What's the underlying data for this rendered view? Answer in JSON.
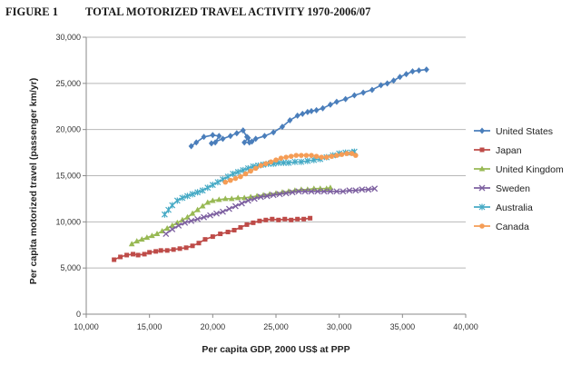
{
  "header": {
    "figure_label": "FIGURE 1",
    "title": "TOTAL MOTORIZED TRAVEL ACTIVITY 1970-2006/07"
  },
  "chart_data": {
    "type": "line",
    "title": "TOTAL MOTORIZED TRAVEL ACTIVITY 1970-2006/07",
    "xlabel": "Per capita GDP, 2000 US$ at PPP",
    "ylabel": "Per capita motorized travel (passenger km/yr)",
    "xlim": [
      10000,
      40000
    ],
    "ylim": [
      0,
      30000
    ],
    "xticks": [
      10000,
      15000,
      20000,
      25000,
      30000,
      35000,
      40000
    ],
    "yticks": [
      0,
      5000,
      10000,
      15000,
      20000,
      25000,
      30000
    ],
    "xtick_labels": [
      "10,000",
      "15,000",
      "20,000",
      "25,000",
      "30,000",
      "35,000",
      "40,000"
    ],
    "ytick_labels": [
      "0",
      "5,000",
      "10,000",
      "15,000",
      "20,000",
      "25,000",
      "30,000"
    ],
    "grid": "horizontal",
    "legend": "right",
    "series": [
      {
        "name": "United States",
        "color": "#4a7ebb",
        "marker": "diamond",
        "points": [
          [
            18300,
            18200
          ],
          [
            18700,
            18600
          ],
          [
            19300,
            19200
          ],
          [
            20000,
            19400
          ],
          [
            20500,
            19300
          ],
          [
            20200,
            18600
          ],
          [
            19900,
            18500
          ],
          [
            20800,
            19000
          ],
          [
            21400,
            19300
          ],
          [
            21900,
            19600
          ],
          [
            22400,
            19900
          ],
          [
            22700,
            19200
          ],
          [
            22900,
            18600
          ],
          [
            22800,
            19100
          ],
          [
            22500,
            18600
          ],
          [
            23100,
            18700
          ],
          [
            23400,
            19000
          ],
          [
            24100,
            19300
          ],
          [
            24800,
            19700
          ],
          [
            25500,
            20300
          ],
          [
            26100,
            21000
          ],
          [
            26700,
            21500
          ],
          [
            27100,
            21700
          ],
          [
            27500,
            21900
          ],
          [
            27800,
            22000
          ],
          [
            28200,
            22100
          ],
          [
            28700,
            22300
          ],
          [
            29300,
            22700
          ],
          [
            29800,
            23000
          ],
          [
            30500,
            23300
          ],
          [
            31200,
            23700
          ],
          [
            31900,
            24000
          ],
          [
            32600,
            24300
          ],
          [
            33300,
            24800
          ],
          [
            33800,
            25000
          ],
          [
            34300,
            25300
          ],
          [
            34800,
            25700
          ],
          [
            35300,
            26000
          ],
          [
            35800,
            26300
          ],
          [
            36300,
            26400
          ],
          [
            36900,
            26500
          ]
        ]
      },
      {
        "name": "Japan",
        "color": "#be4b48",
        "marker": "square",
        "points": [
          [
            12200,
            5900
          ],
          [
            12700,
            6200
          ],
          [
            13200,
            6400
          ],
          [
            13700,
            6500
          ],
          [
            14100,
            6400
          ],
          [
            14600,
            6500
          ],
          [
            15000,
            6700
          ],
          [
            15500,
            6800
          ],
          [
            15900,
            6900
          ],
          [
            16400,
            6900
          ],
          [
            16900,
            7000
          ],
          [
            17400,
            7100
          ],
          [
            17900,
            7200
          ],
          [
            18400,
            7400
          ],
          [
            18900,
            7700
          ],
          [
            19400,
            8100
          ],
          [
            20000,
            8400
          ],
          [
            20600,
            8700
          ],
          [
            21200,
            8900
          ],
          [
            21700,
            9100
          ],
          [
            22200,
            9400
          ],
          [
            22700,
            9700
          ],
          [
            23200,
            9900
          ],
          [
            23700,
            10100
          ],
          [
            24200,
            10200
          ],
          [
            24700,
            10300
          ],
          [
            25200,
            10200
          ],
          [
            25700,
            10300
          ],
          [
            26200,
            10200
          ],
          [
            26700,
            10300
          ],
          [
            27200,
            10300
          ],
          [
            27700,
            10400
          ]
        ]
      },
      {
        "name": "United Kingdom",
        "color": "#98b954",
        "marker": "triangle",
        "points": [
          [
            13600,
            7600
          ],
          [
            14000,
            7900
          ],
          [
            14400,
            8100
          ],
          [
            14800,
            8300
          ],
          [
            15200,
            8500
          ],
          [
            15600,
            8700
          ],
          [
            16000,
            9000
          ],
          [
            16400,
            9300
          ],
          [
            16800,
            9600
          ],
          [
            17200,
            9900
          ],
          [
            17600,
            10200
          ],
          [
            18000,
            10500
          ],
          [
            18400,
            10900
          ],
          [
            18800,
            11300
          ],
          [
            19200,
            11700
          ],
          [
            19600,
            12100
          ],
          [
            20000,
            12300
          ],
          [
            20500,
            12400
          ],
          [
            21000,
            12500
          ],
          [
            21500,
            12500
          ],
          [
            22000,
            12600
          ],
          [
            22500,
            12600
          ],
          [
            23000,
            12700
          ],
          [
            23500,
            12800
          ],
          [
            24000,
            12900
          ],
          [
            24500,
            13000
          ],
          [
            25000,
            13100
          ],
          [
            25500,
            13200
          ],
          [
            26000,
            13300
          ],
          [
            26500,
            13400
          ],
          [
            27000,
            13500
          ],
          [
            27500,
            13500
          ],
          [
            28000,
            13600
          ],
          [
            28500,
            13600
          ],
          [
            29000,
            13600
          ],
          [
            29300,
            13700
          ]
        ]
      },
      {
        "name": "Sweden",
        "color": "#7d60a0",
        "marker": "x",
        "points": [
          [
            16300,
            8700
          ],
          [
            16800,
            9200
          ],
          [
            17300,
            9600
          ],
          [
            17800,
            9900
          ],
          [
            18300,
            10100
          ],
          [
            18800,
            10300
          ],
          [
            19300,
            10500
          ],
          [
            19800,
            10700
          ],
          [
            20300,
            10900
          ],
          [
            20800,
            11100
          ],
          [
            21300,
            11400
          ],
          [
            21800,
            11700
          ],
          [
            22300,
            12000
          ],
          [
            22800,
            12300
          ],
          [
            23300,
            12500
          ],
          [
            23800,
            12700
          ],
          [
            24300,
            12800
          ],
          [
            24800,
            12900
          ],
          [
            25300,
            13000
          ],
          [
            25800,
            13100
          ],
          [
            26300,
            13200
          ],
          [
            26800,
            13300
          ],
          [
            27300,
            13300
          ],
          [
            27800,
            13300
          ],
          [
            28300,
            13300
          ],
          [
            28800,
            13300
          ],
          [
            29300,
            13300
          ],
          [
            29800,
            13300
          ],
          [
            30300,
            13300
          ],
          [
            30800,
            13400
          ],
          [
            31300,
            13400
          ],
          [
            31800,
            13500
          ],
          [
            32300,
            13500
          ],
          [
            32800,
            13600
          ]
        ]
      },
      {
        "name": "Australia",
        "color": "#46aac5",
        "marker": "star",
        "points": [
          [
            16200,
            10800
          ],
          [
            16500,
            11300
          ],
          [
            16800,
            11800
          ],
          [
            17200,
            12300
          ],
          [
            17600,
            12600
          ],
          [
            18000,
            12800
          ],
          [
            18400,
            13000
          ],
          [
            18800,
            13200
          ],
          [
            19200,
            13400
          ],
          [
            19600,
            13700
          ],
          [
            20000,
            14000
          ],
          [
            20400,
            14300
          ],
          [
            20800,
            14600
          ],
          [
            21200,
            14900
          ],
          [
            21600,
            15200
          ],
          [
            22000,
            15400
          ],
          [
            22400,
            15600
          ],
          [
            22800,
            15800
          ],
          [
            23200,
            16000
          ],
          [
            23600,
            16100
          ],
          [
            24000,
            16200
          ],
          [
            24400,
            16300
          ],
          [
            24800,
            16300
          ],
          [
            25200,
            16400
          ],
          [
            25600,
            16400
          ],
          [
            26000,
            16400
          ],
          [
            26500,
            16500
          ],
          [
            27000,
            16500
          ],
          [
            27500,
            16600
          ],
          [
            28000,
            16700
          ],
          [
            28500,
            16800
          ],
          [
            29000,
            17000
          ],
          [
            29500,
            17200
          ],
          [
            30000,
            17400
          ],
          [
            30500,
            17500
          ],
          [
            31000,
            17500
          ],
          [
            31200,
            17600
          ]
        ]
      },
      {
        "name": "Canada",
        "color": "#f59d56",
        "marker": "circle",
        "points": [
          [
            21000,
            14300
          ],
          [
            21400,
            14500
          ],
          [
            21800,
            14700
          ],
          [
            22200,
            14900
          ],
          [
            22600,
            15200
          ],
          [
            23000,
            15500
          ],
          [
            23400,
            15800
          ],
          [
            23800,
            16100
          ],
          [
            24200,
            16300
          ],
          [
            24600,
            16500
          ],
          [
            25000,
            16700
          ],
          [
            25400,
            16900
          ],
          [
            25800,
            17000
          ],
          [
            26200,
            17100
          ],
          [
            26600,
            17200
          ],
          [
            27000,
            17200
          ],
          [
            27400,
            17200
          ],
          [
            27800,
            17200
          ],
          [
            28200,
            17100
          ],
          [
            28600,
            17000
          ],
          [
            29000,
            17000
          ],
          [
            29400,
            17100
          ],
          [
            29800,
            17200
          ],
          [
            30200,
            17300
          ],
          [
            30600,
            17400
          ],
          [
            31000,
            17400
          ],
          [
            31300,
            17200
          ]
        ]
      }
    ]
  }
}
